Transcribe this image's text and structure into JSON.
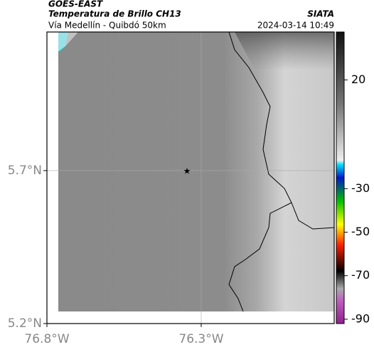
{
  "header": {
    "satellite": "GOES-EAST",
    "product": "Temperatura de Brillo CH13",
    "region": "Vía Medellín - Quibdó 50km",
    "source": "SIATA",
    "timestamp": "2024-03-14 10:49"
  },
  "map": {
    "latlim": [
      5.2,
      6.153
    ],
    "lonlim": [
      -76.8,
      -75.869
    ],
    "lat_ticks": [
      {
        "value": 5.7,
        "label": "5.7°N"
      },
      {
        "value": 5.2,
        "label": "5.2°N"
      }
    ],
    "lon_ticks": [
      {
        "value": -76.8,
        "label": "76.8°W"
      },
      {
        "value": -76.3,
        "label": "76.3°W"
      }
    ]
  },
  "colorbar": {
    "lim": [
      -92,
      42
    ],
    "ticks": [
      20,
      -30,
      -50,
      -70,
      -90
    ]
  }
}
